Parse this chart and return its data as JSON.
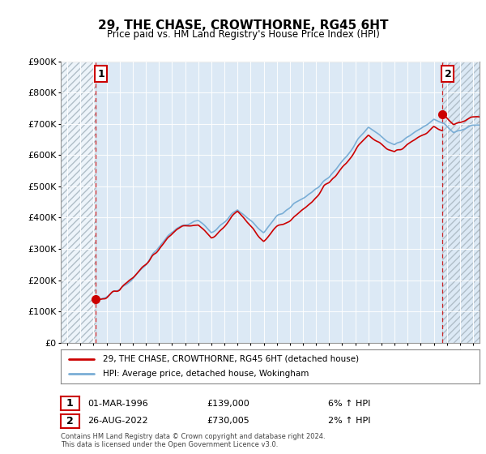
{
  "title": "29, THE CHASE, CROWTHORNE, RG45 6HT",
  "subtitle": "Price paid vs. HM Land Registry's House Price Index (HPI)",
  "ylabel_ticks": [
    "£0",
    "£100K",
    "£200K",
    "£300K",
    "£400K",
    "£500K",
    "£600K",
    "£700K",
    "£800K",
    "£900K"
  ],
  "ylim": [
    0,
    900000
  ],
  "xlim_start": 1993.5,
  "xlim_end": 2025.5,
  "hpi_color": "#7aaed6",
  "price_color": "#cc0000",
  "plot_bg_color": "#dce9f5",
  "hatch_color": "#c8d4e0",
  "transaction1": {
    "date": 1996.17,
    "price": 139000,
    "label": "1"
  },
  "transaction2": {
    "date": 2022.65,
    "price": 730005,
    "label": "2"
  },
  "legend_line1": "29, THE CHASE, CROWTHORNE, RG45 6HT (detached house)",
  "legend_line2": "HPI: Average price, detached house, Wokingham",
  "note1_label": "1",
  "note1_date": "01-MAR-1996",
  "note1_price": "£139,000",
  "note1_hpi": "6% ↑ HPI",
  "note2_label": "2",
  "note2_date": "26-AUG-2022",
  "note2_price": "£730,005",
  "note2_hpi": "2% ↑ HPI",
  "footer": "Contains HM Land Registry data © Crown copyright and database right 2024.\nThis data is licensed under the Open Government Licence v3.0."
}
